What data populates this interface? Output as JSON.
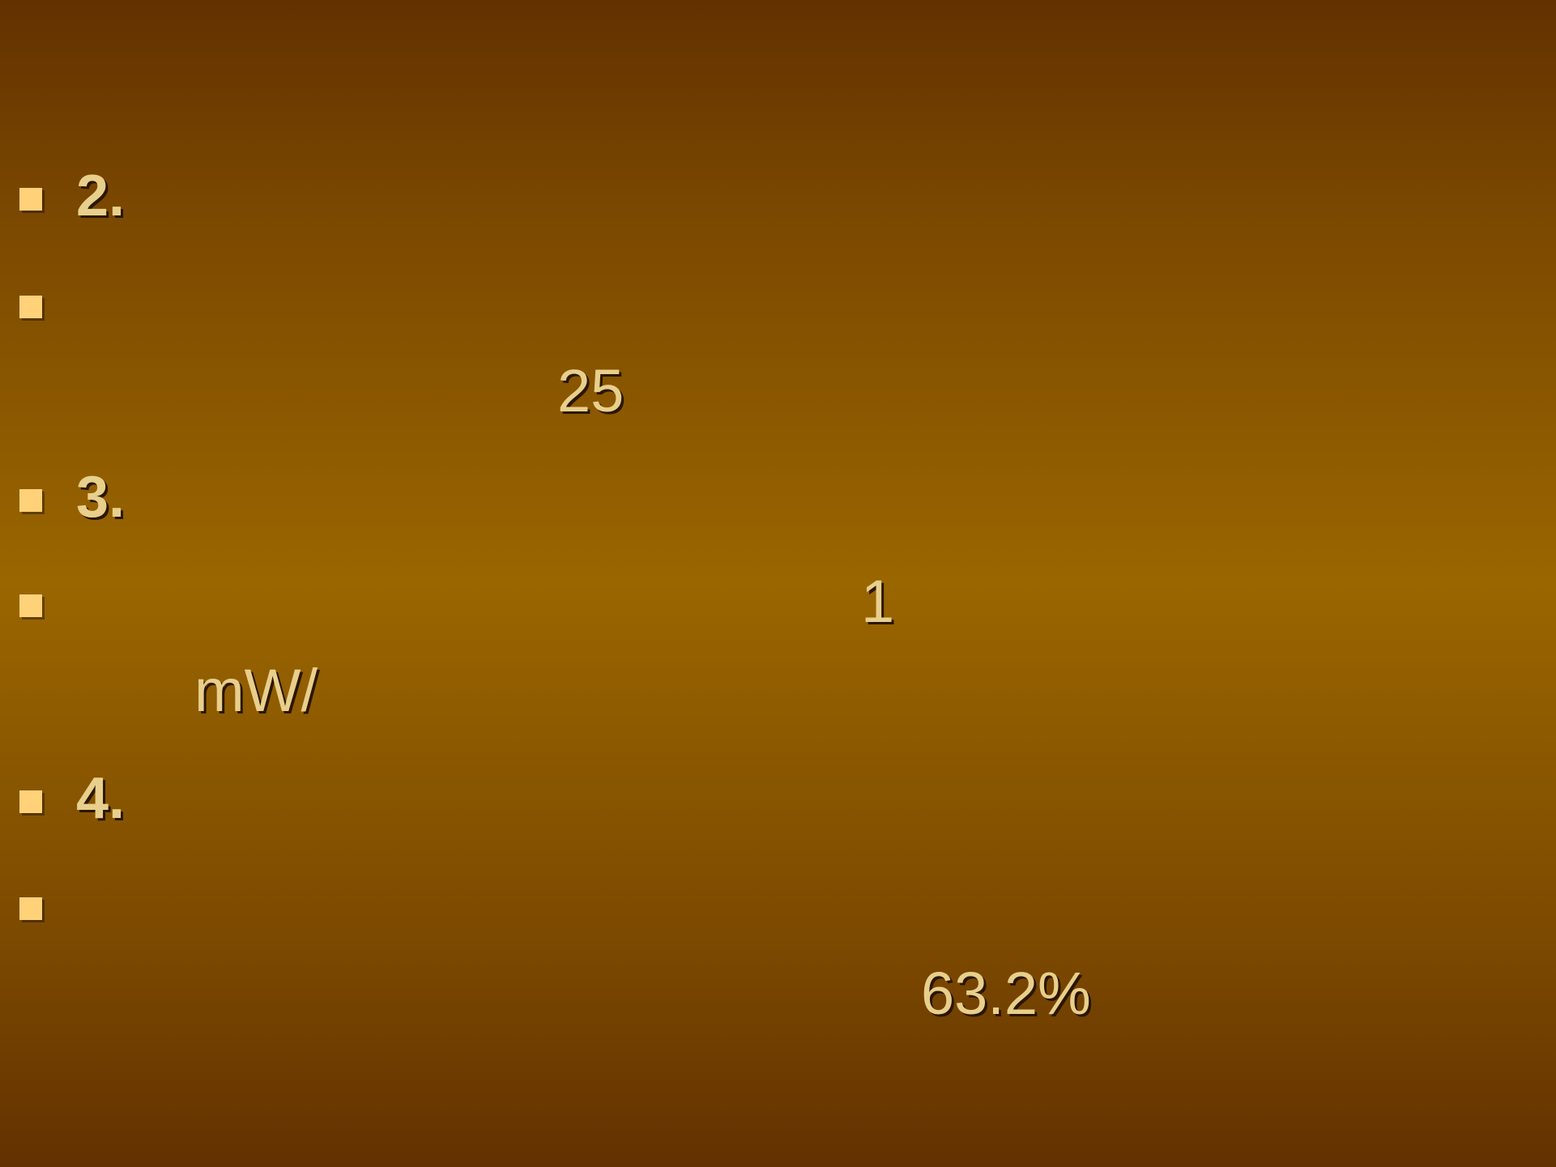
{
  "slide": {
    "items": [
      {
        "heading": "2."
      },
      {
        "heading": ""
      },
      {
        "heading": "3."
      },
      {
        "heading": ""
      },
      {
        "heading": "4."
      },
      {
        "heading": ""
      }
    ],
    "values": {
      "v25": "25",
      "v1": "1",
      "unit": "mW/",
      "percent": "63.2%"
    }
  }
}
